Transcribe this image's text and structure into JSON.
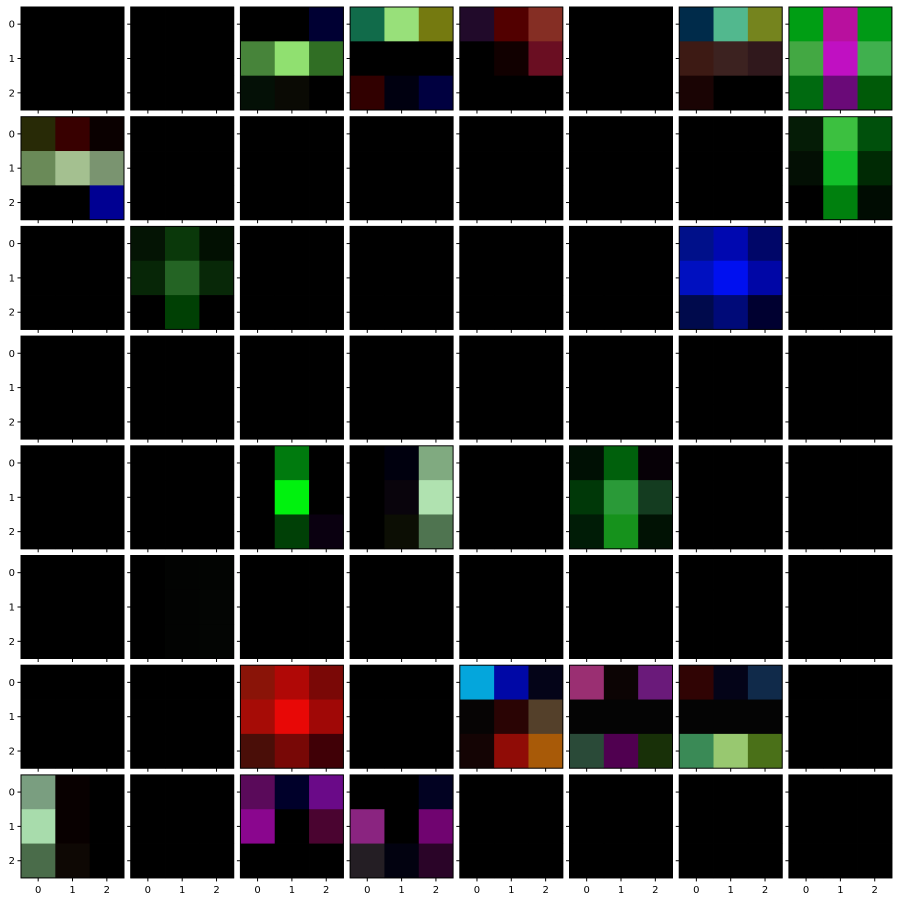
{
  "chart_data": {
    "type": "heatmap",
    "grid_rows": 8,
    "grid_cols": 8,
    "cell_rows": 3,
    "cell_cols": 3,
    "x_tick_labels": [
      "0",
      "1",
      "2"
    ],
    "y_tick_labels": [
      "0",
      "1",
      "2"
    ],
    "background": "#ffffff",
    "cell_border": "#000000",
    "panels": [
      [
        [
          "#000000",
          "#000000",
          "#000000"
        ],
        [
          "#000000",
          "#000000",
          "#000000"
        ],
        [
          "#000000",
          "#000000",
          "#000000"
        ]
      ],
      [
        [
          "#000000",
          "#000000",
          "#000000"
        ],
        [
          "#000000",
          "#000000",
          "#000000"
        ],
        [
          "#000000",
          "#000000",
          "#000000"
        ]
      ],
      [
        [
          "#000000",
          "#000000",
          "#000033"
        ],
        [
          "#47843a",
          "#90e070",
          "#306e24"
        ],
        [
          "#041006",
          "#0a0a04",
          "#000000"
        ]
      ],
      [
        [
          "#116b4a",
          "#98e07a",
          "#757a10"
        ],
        [
          "#000000",
          "#000000",
          "#000000"
        ],
        [
          "#310000",
          "#000010",
          "#000040"
        ]
      ],
      [
        [
          "#210a2a",
          "#520000",
          "#852e24"
        ],
        [
          "#000000",
          "#110000",
          "#6a0e22"
        ],
        [
          "#000000",
          "#000000",
          "#000000"
        ]
      ],
      [
        [
          "#000000",
          "#000000",
          "#000000"
        ],
        [
          "#000000",
          "#000000",
          "#000000"
        ],
        [
          "#000000",
          "#000000",
          "#000000"
        ]
      ],
      [
        [
          "#002b4a",
          "#52b88e",
          "#75841e"
        ],
        [
          "#3d1a14",
          "#3c2220",
          "#30181c"
        ],
        [
          "#1a0404",
          "#000000",
          "#000000"
        ]
      ],
      [
        [
          "#009e14",
          "#b8109e",
          "#009a16"
        ],
        [
          "#43a843",
          "#c010c2",
          "#40b04e"
        ],
        [
          "#006a10",
          "#6a0a78",
          "#005a08"
        ]
      ],
      [
        [
          "#282a06",
          "#380000",
          "#0a0000"
        ],
        [
          "#6a8a58",
          "#a4c090",
          "#7a9470"
        ],
        [
          "#000000",
          "#000000",
          "#000092"
        ]
      ],
      [
        [
          "#000000",
          "#000000",
          "#000000"
        ],
        [
          "#000000",
          "#000000",
          "#000000"
        ],
        [
          "#000000",
          "#000000",
          "#000000"
        ]
      ],
      [
        [
          "#000000",
          "#000000",
          "#000000"
        ],
        [
          "#000000",
          "#000000",
          "#000000"
        ],
        [
          "#000000",
          "#000000",
          "#000000"
        ]
      ],
      [
        [
          "#000000",
          "#000000",
          "#000000"
        ],
        [
          "#000000",
          "#000000",
          "#000000"
        ],
        [
          "#000000",
          "#000000",
          "#000000"
        ]
      ],
      [
        [
          "#000000",
          "#000000",
          "#000000"
        ],
        [
          "#000000",
          "#000000",
          "#000000"
        ],
        [
          "#000000",
          "#000000",
          "#000000"
        ]
      ],
      [
        [
          "#000000",
          "#000000",
          "#000000"
        ],
        [
          "#000000",
          "#000000",
          "#000000"
        ],
        [
          "#000000",
          "#000000",
          "#000000"
        ]
      ],
      [
        [
          "#000000",
          "#000000",
          "#000000"
        ],
        [
          "#000000",
          "#000000",
          "#000000"
        ],
        [
          "#000000",
          "#000000",
          "#000000"
        ]
      ],
      [
        [
          "#051c06",
          "#3cc040",
          "#00500c"
        ],
        [
          "#030f04",
          "#12c02a",
          "#002a04"
        ],
        [
          "#000000",
          "#00800e",
          "#000c02"
        ]
      ],
      [
        [
          "#000000",
          "#000000",
          "#000000"
        ],
        [
          "#000000",
          "#000000",
          "#000000"
        ],
        [
          "#000000",
          "#000000",
          "#000000"
        ]
      ],
      [
        [
          "#041404",
          "#0a380a",
          "#021002"
        ],
        [
          "#072607",
          "#246424",
          "#082808"
        ],
        [
          "#000000",
          "#004004",
          "#000000"
        ]
      ],
      [
        [
          "#000000",
          "#000000",
          "#000000"
        ],
        [
          "#000000",
          "#000000",
          "#000000"
        ],
        [
          "#000000",
          "#000000",
          "#000000"
        ]
      ],
      [
        [
          "#000000",
          "#000000",
          "#000000"
        ],
        [
          "#000000",
          "#000000",
          "#000000"
        ],
        [
          "#000000",
          "#000000",
          "#000000"
        ]
      ],
      [
        [
          "#000000",
          "#000000",
          "#000000"
        ],
        [
          "#000000",
          "#000000",
          "#000000"
        ],
        [
          "#000000",
          "#000000",
          "#000000"
        ]
      ],
      [
        [
          "#000000",
          "#000000",
          "#000000"
        ],
        [
          "#000000",
          "#000000",
          "#000000"
        ],
        [
          "#000000",
          "#000000",
          "#000000"
        ]
      ],
      [
        [
          "#00108a",
          "#0008b0",
          "#000668"
        ],
        [
          "#0010c0",
          "#0010f0",
          "#0006a6"
        ],
        [
          "#000a4c",
          "#000a78",
          "#000030"
        ]
      ],
      [
        [
          "#000000",
          "#000000",
          "#000000"
        ],
        [
          "#000000",
          "#000000",
          "#000000"
        ],
        [
          "#000000",
          "#000000",
          "#000000"
        ]
      ],
      [
        [
          "#000000",
          "#000000",
          "#000000"
        ],
        [
          "#000000",
          "#000000",
          "#000000"
        ],
        [
          "#000000",
          "#000000",
          "#000000"
        ]
      ],
      [
        [
          "#000000",
          "#000000",
          "#000000"
        ],
        [
          "#000000",
          "#000000",
          "#000000"
        ],
        [
          "#000000",
          "#000000",
          "#000000"
        ]
      ],
      [
        [
          "#000000",
          "#000000",
          "#000000"
        ],
        [
          "#000000",
          "#000000",
          "#000000"
        ],
        [
          "#000000",
          "#000000",
          "#000000"
        ]
      ],
      [
        [
          "#000000",
          "#000000",
          "#000000"
        ],
        [
          "#000000",
          "#000000",
          "#000000"
        ],
        [
          "#000000",
          "#000000",
          "#000000"
        ]
      ],
      [
        [
          "#000000",
          "#000000",
          "#000000"
        ],
        [
          "#000000",
          "#000000",
          "#000000"
        ],
        [
          "#000000",
          "#000000",
          "#000000"
        ]
      ],
      [
        [
          "#000000",
          "#000000",
          "#000000"
        ],
        [
          "#000000",
          "#000000",
          "#000000"
        ],
        [
          "#000000",
          "#000000",
          "#000000"
        ]
      ],
      [
        [
          "#000000",
          "#000000",
          "#000000"
        ],
        [
          "#000000",
          "#000000",
          "#000000"
        ],
        [
          "#000000",
          "#000000",
          "#000000"
        ]
      ],
      [
        [
          "#000000",
          "#000000",
          "#000000"
        ],
        [
          "#000000",
          "#000000",
          "#000000"
        ],
        [
          "#000000",
          "#000000",
          "#000000"
        ]
      ],
      [
        [
          "#000000",
          "#000000",
          "#000000"
        ],
        [
          "#000000",
          "#000000",
          "#000000"
        ],
        [
          "#000000",
          "#000000",
          "#000000"
        ]
      ],
      [
        [
          "#000000",
          "#000000",
          "#000000"
        ],
        [
          "#000000",
          "#000000",
          "#000000"
        ],
        [
          "#000000",
          "#000000",
          "#000000"
        ]
      ],
      [
        [
          "#000000",
          "#007a0e",
          "#000000"
        ],
        [
          "#000000",
          "#00f20e",
          "#000000"
        ],
        [
          "#000000",
          "#004006",
          "#0a0010"
        ]
      ],
      [
        [
          "#000000",
          "#00000e",
          "#80aa80"
        ],
        [
          "#000000",
          "#09040c",
          "#b0e2b0"
        ],
        [
          "#000000",
          "#0c0e04",
          "#4f7450"
        ]
      ],
      [
        [
          "#000000",
          "#000000",
          "#000000"
        ],
        [
          "#000000",
          "#000000",
          "#000000"
        ],
        [
          "#000000",
          "#000000",
          "#000000"
        ]
      ],
      [
        [
          "#001004",
          "#00600c",
          "#060006"
        ],
        [
          "#003808",
          "#2a9a38",
          "#143c20"
        ],
        [
          "#001c06",
          "#16921c",
          "#011204"
        ]
      ],
      [
        [
          "#000000",
          "#000000",
          "#000000"
        ],
        [
          "#000000",
          "#000000",
          "#000000"
        ],
        [
          "#000000",
          "#000000",
          "#000000"
        ]
      ],
      [
        [
          "#000000",
          "#000000",
          "#000000"
        ],
        [
          "#000000",
          "#000000",
          "#000000"
        ],
        [
          "#000000",
          "#000000",
          "#000000"
        ]
      ],
      [
        [
          "#000000",
          "#000000",
          "#000000"
        ],
        [
          "#000000",
          "#000000",
          "#000000"
        ],
        [
          "#000000",
          "#000000",
          "#000000"
        ]
      ],
      [
        [
          "#000000",
          "#020302",
          "#020402"
        ],
        [
          "#000000",
          "#020302",
          "#030503"
        ],
        [
          "#000000",
          "#020302",
          "#030503"
        ]
      ],
      [
        [
          "#000000",
          "#000000",
          "#000000"
        ],
        [
          "#000000",
          "#000000",
          "#000000"
        ],
        [
          "#000000",
          "#000000",
          "#000000"
        ]
      ],
      [
        [
          "#000000",
          "#000000",
          "#000000"
        ],
        [
          "#000000",
          "#000000",
          "#000000"
        ],
        [
          "#000000",
          "#000000",
          "#000000"
        ]
      ],
      [
        [
          "#000000",
          "#000000",
          "#000000"
        ],
        [
          "#000000",
          "#000000",
          "#000000"
        ],
        [
          "#000000",
          "#000000",
          "#000000"
        ]
      ],
      [
        [
          "#000000",
          "#000000",
          "#000000"
        ],
        [
          "#000000",
          "#000000",
          "#000000"
        ],
        [
          "#000000",
          "#000000",
          "#000000"
        ]
      ],
      [
        [
          "#000000",
          "#000000",
          "#000000"
        ],
        [
          "#000000",
          "#000000",
          "#000000"
        ],
        [
          "#000000",
          "#000000",
          "#000000"
        ]
      ],
      [
        [
          "#000000",
          "#000000",
          "#000000"
        ],
        [
          "#000000",
          "#000000",
          "#000000"
        ],
        [
          "#000000",
          "#000000",
          "#000000"
        ]
      ],
      [
        [
          "#000000",
          "#000000",
          "#000000"
        ],
        [
          "#000000",
          "#000000",
          "#000000"
        ],
        [
          "#000000",
          "#000000",
          "#000000"
        ]
      ],
      [
        [
          "#000000",
          "#000000",
          "#000000"
        ],
        [
          "#000000",
          "#000000",
          "#000000"
        ],
        [
          "#000000",
          "#000000",
          "#000000"
        ]
      ],
      [
        [
          "#8a1408",
          "#b00806",
          "#7a0806"
        ],
        [
          "#a60c06",
          "#e80806",
          "#a00806"
        ],
        [
          "#4a0e08",
          "#780806",
          "#400006"
        ]
      ],
      [
        [
          "#000000",
          "#000000",
          "#000000"
        ],
        [
          "#000000",
          "#000000",
          "#000000"
        ],
        [
          "#000000",
          "#000000",
          "#000000"
        ]
      ],
      [
        [
          "#04a6dc",
          "#0008a6",
          "#040418"
        ],
        [
          "#060404",
          "#2a0404",
          "#54402a"
        ],
        [
          "#140404",
          "#900c06",
          "#a85a08"
        ]
      ],
      [
        [
          "#9a2f72",
          "#0c0404",
          "#6a1a7a"
        ],
        [
          "#040404",
          "#040404",
          "#040404"
        ],
        [
          "#2a4a38",
          "#500050",
          "#183008"
        ]
      ],
      [
        [
          "#300404",
          "#040418",
          "#102a4a"
        ],
        [
          "#040404",
          "#040404",
          "#040404"
        ],
        [
          "#3a8a56",
          "#98c870",
          "#4a7018"
        ]
      ],
      [
        [
          "#000000",
          "#000000",
          "#000000"
        ],
        [
          "#000000",
          "#000000",
          "#000000"
        ],
        [
          "#000000",
          "#000000",
          "#000000"
        ]
      ],
      [
        [
          "#7a9e80",
          "#080000",
          "#000000"
        ],
        [
          "#a8dcac",
          "#080000",
          "#000000"
        ],
        [
          "#4a6c4a",
          "#0e0804",
          "#000000"
        ]
      ],
      [
        [
          "#000000",
          "#000000",
          "#000000"
        ],
        [
          "#000000",
          "#000000",
          "#000000"
        ],
        [
          "#000000",
          "#000000",
          "#000000"
        ]
      ],
      [
        [
          "#5a0a5a",
          "#00002a",
          "#6a0a88"
        ],
        [
          "#8a068e",
          "#000000",
          "#4a0430"
        ],
        [
          "#000000",
          "#000000",
          "#000000"
        ]
      ],
      [
        [
          "#000000",
          "#000000",
          "#020222"
        ],
        [
          "#8a2480",
          "#000000",
          "#700470"
        ],
        [
          "#241e24",
          "#020210",
          "#2a0428"
        ]
      ],
      [
        [
          "#000000",
          "#000000",
          "#000000"
        ],
        [
          "#000000",
          "#000000",
          "#000000"
        ],
        [
          "#000000",
          "#000000",
          "#000000"
        ]
      ],
      [
        [
          "#000000",
          "#000000",
          "#000000"
        ],
        [
          "#000000",
          "#000000",
          "#000000"
        ],
        [
          "#000000",
          "#000000",
          "#000000"
        ]
      ],
      [
        [
          "#000000",
          "#000000",
          "#000000"
        ],
        [
          "#000000",
          "#000000",
          "#000000"
        ],
        [
          "#000000",
          "#000000",
          "#000000"
        ]
      ],
      [
        [
          "#000000",
          "#000000",
          "#000000"
        ],
        [
          "#000000",
          "#000000",
          "#000000"
        ],
        [
          "#000000",
          "#000000",
          "#000000"
        ]
      ]
    ]
  }
}
